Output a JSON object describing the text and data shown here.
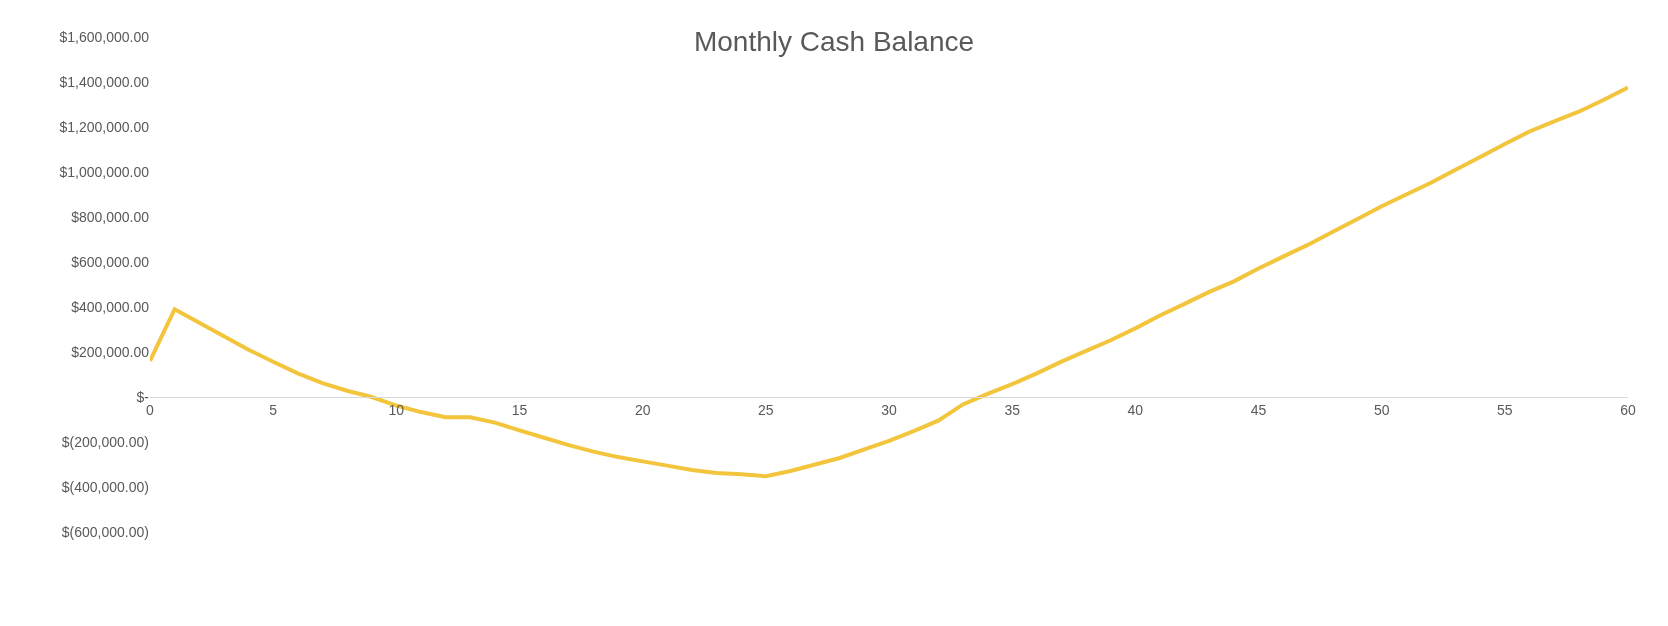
{
  "chart_data": {
    "type": "line",
    "title": "Monthly Cash Balance",
    "x": [
      0,
      1,
      2,
      3,
      4,
      5,
      6,
      7,
      8,
      9,
      10,
      11,
      12,
      13,
      14,
      15,
      16,
      17,
      18,
      19,
      20,
      21,
      22,
      23,
      24,
      25,
      26,
      27,
      28,
      29,
      30,
      31,
      32,
      33,
      34,
      35,
      36,
      37,
      38,
      39,
      40,
      41,
      42,
      43,
      44,
      45,
      46,
      47,
      48,
      49,
      50,
      51,
      52,
      53,
      54,
      55,
      56,
      57,
      58,
      59,
      60
    ],
    "series": [
      {
        "color": "#f2c53d",
        "values": [
          160000,
          390000,
          330000,
          270000,
          210000,
          157000,
          105000,
          62000,
          28000,
          0,
          -38000,
          -67000,
          -90000,
          -90000,
          -114000,
          -148000,
          -181000,
          -214000,
          -243000,
          -267000,
          -286000,
          -305000,
          -324000,
          -338000,
          -343000,
          -352000,
          -329000,
          -300000,
          -271000,
          -233000,
          -195000,
          -152000,
          -105000,
          -33000,
          14000,
          57000,
          105000,
          157000,
          205000,
          252000,
          305000,
          362000,
          414000,
          467000,
          514000,
          571000,
          624000,
          676000,
          733000,
          790000,
          848000,
          900000,
          952000,
          1010000,
          1067000,
          1124000,
          1180000,
          1225000,
          1268000,
          1320000,
          1375000
        ]
      }
    ],
    "xlim": [
      0,
      60
    ],
    "xticks": [
      0,
      5,
      10,
      15,
      20,
      25,
      30,
      35,
      40,
      45,
      50,
      55,
      60
    ],
    "ylim": [
      -600000,
      1600000
    ],
    "yticks": [
      {
        "value": 1600000,
        "label": "$1,600,000.00"
      },
      {
        "value": 1400000,
        "label": "$1,400,000.00"
      },
      {
        "value": 1200000,
        "label": "$1,200,000.00"
      },
      {
        "value": 1000000,
        "label": "$1,000,000.00"
      },
      {
        "value": 800000,
        "label": "$800,000.00"
      },
      {
        "value": 600000,
        "label": "$600,000.00"
      },
      {
        "value": 400000,
        "label": "$400,000.00"
      },
      {
        "value": 200000,
        "label": "$200,000.00"
      },
      {
        "value": 0,
        "label": "$-"
      },
      {
        "value": -200000,
        "label": "$(200,000.00)"
      },
      {
        "value": -400000,
        "label": "$(400,000.00)"
      },
      {
        "value": -600000,
        "label": "$(600,000.00)"
      }
    ],
    "marker": "none",
    "line_style": "solid"
  }
}
